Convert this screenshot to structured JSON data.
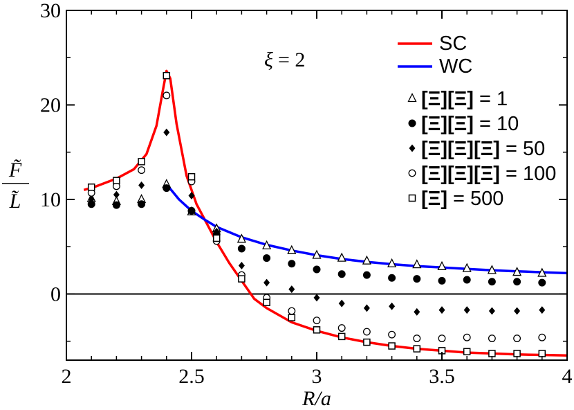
{
  "chart_data": {
    "type": "line",
    "xlabel": "R/a",
    "ylabel_numerator": "F̃",
    "ylabel_denominator": "L̃",
    "xlim": [
      2,
      4
    ],
    "ylim": [
      -7,
      30
    ],
    "x_ticks": [
      2,
      2.5,
      3,
      3.5,
      4
    ],
    "x_tick_labels": [
      "2",
      "2.5",
      "3",
      "3.5",
      "4"
    ],
    "y_ticks": [
      0,
      10,
      20,
      30
    ],
    "y_tick_labels": [
      "0",
      "10",
      "20",
      "30"
    ],
    "grid": false,
    "legend_position": "top-right",
    "annotation": {
      "symbol": "ξ",
      "text": " = 2"
    },
    "reference_line_y": 0,
    "curves": [
      {
        "name": "SC",
        "color": "#ff0000",
        "x": [
          2.07,
          2.12,
          2.2,
          2.27,
          2.32,
          2.36,
          2.385,
          2.4,
          2.415,
          2.44,
          2.48,
          2.52,
          2.56,
          2.6,
          2.65,
          2.7,
          2.75,
          2.8,
          2.9,
          3.0,
          3.1,
          3.2,
          3.3,
          3.4,
          3.5,
          3.6,
          3.7,
          3.8,
          3.9,
          4.0
        ],
        "y": [
          11.0,
          11.4,
          12.2,
          13.2,
          14.8,
          17.8,
          21.5,
          23.6,
          22.8,
          18.0,
          12.5,
          9.5,
          7.5,
          5.5,
          3.3,
          1.4,
          -0.5,
          -1.5,
          -3.0,
          -3.9,
          -4.6,
          -5.1,
          -5.5,
          -5.8,
          -6.0,
          -6.2,
          -6.3,
          -6.4,
          -6.45,
          -6.5
        ]
      },
      {
        "name": "WC",
        "color": "#0000ff",
        "x": [
          2.4,
          2.45,
          2.5,
          2.55,
          2.6,
          2.7,
          2.8,
          2.9,
          3.0,
          3.1,
          3.2,
          3.3,
          3.4,
          3.5,
          3.6,
          3.7,
          3.8,
          3.9,
          4.0
        ],
        "y": [
          11.6,
          10.0,
          8.8,
          7.9,
          7.1,
          6.0,
          5.2,
          4.6,
          4.1,
          3.7,
          3.4,
          3.15,
          2.95,
          2.8,
          2.65,
          2.5,
          2.4,
          2.3,
          2.2
        ]
      }
    ],
    "series": [
      {
        "name": "= 1",
        "marker": "triangle-open",
        "x": [
          2.1,
          2.2,
          2.3,
          2.4,
          2.5,
          2.6,
          2.7,
          2.8,
          2.9,
          3.0,
          3.1,
          3.2,
          3.3,
          3.4,
          3.5,
          3.6,
          3.7,
          3.8,
          3.9
        ],
        "y": [
          10.1,
          9.8,
          10.0,
          11.6,
          8.7,
          6.9,
          5.8,
          5.1,
          4.6,
          4.1,
          3.8,
          3.5,
          3.2,
          3.1,
          2.9,
          2.7,
          2.5,
          2.3,
          2.2
        ]
      },
      {
        "name": "= 10",
        "marker": "circle-filled",
        "x": [
          2.1,
          2.2,
          2.3,
          2.4,
          2.5,
          2.6,
          2.7,
          2.8,
          2.9,
          3.0,
          3.1,
          3.2,
          3.3,
          3.4,
          3.5,
          3.6,
          3.7,
          3.8,
          3.9
        ],
        "y": [
          9.5,
          9.4,
          9.5,
          11.2,
          8.8,
          6.3,
          4.8,
          3.8,
          3.2,
          2.6,
          2.1,
          2.0,
          1.7,
          1.6,
          1.4,
          1.5,
          1.3,
          1.3,
          1.2
        ]
      },
      {
        "name": "= 50",
        "marker": "diamond-filled",
        "x": [
          2.1,
          2.2,
          2.3,
          2.4,
          2.5,
          2.6,
          2.7,
          2.8,
          2.9,
          3.0,
          3.1,
          3.2,
          3.3,
          3.4,
          3.5,
          3.6,
          3.7,
          3.8,
          3.9
        ],
        "y": [
          10.0,
          10.5,
          11.5,
          17.1,
          10.4,
          6.6,
          3.0,
          1.2,
          0.5,
          -0.4,
          -1.0,
          -1.5,
          -1.3,
          -1.9,
          -1.7,
          -1.7,
          -1.8,
          -1.8,
          -1.7
        ]
      },
      {
        "name": "= 100",
        "marker": "circle-open",
        "x": [
          2.1,
          2.2,
          2.3,
          2.4,
          2.5,
          2.6,
          2.7,
          2.8,
          2.9,
          3.0,
          3.1,
          3.2,
          3.3,
          3.4,
          3.5,
          3.6,
          3.7,
          3.8,
          3.9
        ],
        "y": [
          10.7,
          11.4,
          13.1,
          21.0,
          11.9,
          5.6,
          2.0,
          -0.4,
          -1.8,
          -2.8,
          -3.6,
          -4.0,
          -4.3,
          -4.7,
          -4.7,
          -4.6,
          -4.7,
          -4.7,
          -4.6
        ]
      },
      {
        "name": "= 500",
        "marker": "square-open",
        "x": [
          2.1,
          2.2,
          2.3,
          2.4,
          2.5,
          2.6,
          2.7,
          2.8,
          2.9,
          3.0,
          3.1,
          3.2,
          3.3,
          3.4,
          3.5,
          3.6,
          3.7,
          3.8,
          3.9
        ],
        "y": [
          11.3,
          12.0,
          14.0,
          23.1,
          12.4,
          5.9,
          1.6,
          -0.9,
          -2.5,
          -3.8,
          -4.5,
          -5.1,
          -5.5,
          -5.8,
          -6.0,
          -6.1,
          -6.3,
          -6.3,
          -6.3
        ]
      }
    ],
    "legend_glyph": "Ξ"
  }
}
